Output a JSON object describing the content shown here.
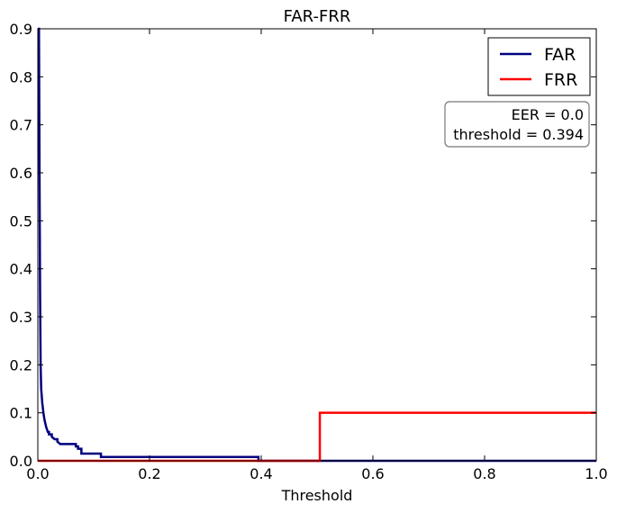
{
  "chart_data": {
    "type": "line",
    "title": "FAR-FRR",
    "xlabel": "Threshold",
    "ylabel": "",
    "xlim": [
      0.0,
      1.0
    ],
    "ylim": [
      0.0,
      0.9
    ],
    "xticks": [
      "0.0",
      "0.2",
      "0.4",
      "0.6",
      "0.8",
      "1.0"
    ],
    "yticks": [
      "0.0",
      "0.1",
      "0.2",
      "0.3",
      "0.4",
      "0.5",
      "0.6",
      "0.7",
      "0.8",
      "0.9"
    ],
    "grid": false,
    "legend": "top-right",
    "series": [
      {
        "name": "FAR",
        "color": "#000080",
        "x": [
          0.0,
          0.002,
          0.003,
          0.004,
          0.005,
          0.006,
          0.008,
          0.01,
          0.012,
          0.015,
          0.018,
          0.02,
          0.02,
          0.025,
          0.025,
          0.03,
          0.035,
          0.035,
          0.04,
          0.06,
          0.068,
          0.068,
          0.072,
          0.072,
          0.078,
          0.078,
          0.113,
          0.113,
          0.395,
          0.395,
          1.0
        ],
        "y": [
          0.9,
          0.9,
          0.6,
          0.35,
          0.2,
          0.15,
          0.12,
          0.1,
          0.085,
          0.07,
          0.06,
          0.06,
          0.055,
          0.055,
          0.05,
          0.045,
          0.045,
          0.04,
          0.035,
          0.035,
          0.035,
          0.03,
          0.03,
          0.025,
          0.025,
          0.015,
          0.015,
          0.008,
          0.008,
          0.0,
          0.0
        ]
      },
      {
        "name": "FRR",
        "color": "#ff0000",
        "x": [
          0.0,
          0.505,
          0.505,
          1.0
        ],
        "y": [
          0.0,
          0.0,
          0.1,
          0.1
        ]
      }
    ],
    "annotation": {
      "lines": [
        "EER = 0.0",
        "threshold = 0.394"
      ]
    }
  }
}
